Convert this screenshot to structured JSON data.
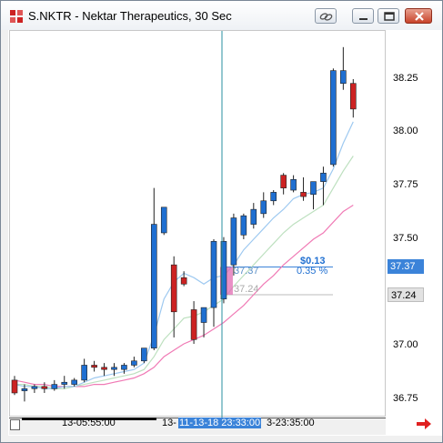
{
  "window": {
    "title": "S.NKTR - Nektar Therapeutics, 30 Sec"
  },
  "colors": {
    "up_candle": "#1f6fd1",
    "down_candle": "#cc2222",
    "crosshair": "#2a8fa0",
    "ma_fast": "#9ec9f0",
    "ma_mid": "#bde0bf",
    "ma_slow": "#f07ab5",
    "selection_fill": "#e26bb3",
    "price_tag_blue": "#3b83d9"
  },
  "y_axis": {
    "labels": [
      "38.25",
      "38.00",
      "37.75",
      "37.50",
      "37.00",
      "36.75"
    ]
  },
  "price_tags": {
    "current": "37.37",
    "reference": "37.24"
  },
  "crosshair": {
    "change_dollar": "$0.13",
    "change_percent": "0.35 %",
    "price_at_cursor": "37.37",
    "price_reference": "37.24"
  },
  "x_axis": {
    "labels": [
      "13-05:55:00",
      "13-",
      "11-13-18 23:33:00",
      "3-23:35:00"
    ]
  },
  "chart_data": {
    "type": "candlestick",
    "symbol": "S.NKTR",
    "interval": "30 Sec",
    "ylim": [
      36.67,
      38.52
    ],
    "candles": [
      {
        "o": 36.84,
        "h": 36.86,
        "l": 36.77,
        "c": 36.78
      },
      {
        "o": 36.79,
        "h": 36.82,
        "l": 36.74,
        "c": 36.8
      },
      {
        "o": 36.8,
        "h": 36.82,
        "l": 36.78,
        "c": 36.81
      },
      {
        "o": 36.81,
        "h": 36.83,
        "l": 36.78,
        "c": 36.8
      },
      {
        "o": 36.8,
        "h": 36.84,
        "l": 36.79,
        "c": 36.82
      },
      {
        "o": 36.82,
        "h": 36.86,
        "l": 36.8,
        "c": 36.83
      },
      {
        "o": 36.82,
        "h": 36.85,
        "l": 36.81,
        "c": 36.84
      },
      {
        "o": 36.84,
        "h": 36.94,
        "l": 36.83,
        "c": 36.91
      },
      {
        "o": 36.91,
        "h": 36.93,
        "l": 36.88,
        "c": 36.9
      },
      {
        "o": 36.9,
        "h": 36.92,
        "l": 36.86,
        "c": 36.89
      },
      {
        "o": 36.89,
        "h": 36.92,
        "l": 36.86,
        "c": 36.9
      },
      {
        "o": 36.89,
        "h": 36.92,
        "l": 36.87,
        "c": 36.91
      },
      {
        "o": 36.91,
        "h": 36.95,
        "l": 36.9,
        "c": 36.93
      },
      {
        "o": 36.93,
        "h": 36.99,
        "l": 36.92,
        "c": 36.99
      },
      {
        "o": 36.99,
        "h": 37.74,
        "l": 36.98,
        "c": 37.57
      },
      {
        "o": 37.53,
        "h": 37.65,
        "l": 37.52,
        "c": 37.65
      },
      {
        "o": 37.38,
        "h": 37.42,
        "l": 37.04,
        "c": 37.16
      },
      {
        "o": 37.32,
        "h": 37.35,
        "l": 37.28,
        "c": 37.29
      },
      {
        "o": 37.17,
        "h": 37.21,
        "l": 37.01,
        "c": 37.03
      },
      {
        "o": 37.11,
        "h": 37.18,
        "l": 37.04,
        "c": 37.18
      },
      {
        "o": 37.18,
        "h": 37.5,
        "l": 37.09,
        "c": 37.49
      },
      {
        "o": 37.22,
        "h": 37.51,
        "l": 37.2,
        "c": 37.49
      },
      {
        "o": 37.38,
        "h": 37.62,
        "l": 37.33,
        "c": 37.6
      },
      {
        "o": 37.52,
        "h": 37.62,
        "l": 37.5,
        "c": 37.61
      },
      {
        "o": 37.57,
        "h": 37.67,
        "l": 37.55,
        "c": 37.64
      },
      {
        "o": 37.62,
        "h": 37.72,
        "l": 37.6,
        "c": 37.68
      },
      {
        "o": 37.68,
        "h": 37.73,
        "l": 37.66,
        "c": 37.72
      },
      {
        "o": 37.8,
        "h": 37.81,
        "l": 37.71,
        "c": 37.74
      },
      {
        "o": 37.73,
        "h": 37.8,
        "l": 37.72,
        "c": 37.78
      },
      {
        "o": 37.72,
        "h": 37.79,
        "l": 37.68,
        "c": 37.7
      },
      {
        "o": 37.71,
        "h": 37.76,
        "l": 37.64,
        "c": 37.77
      },
      {
        "o": 37.77,
        "h": 37.84,
        "l": 37.66,
        "c": 37.81
      },
      {
        "o": 37.85,
        "h": 38.3,
        "l": 37.84,
        "c": 38.29
      },
      {
        "o": 38.23,
        "h": 38.4,
        "l": 38.2,
        "c": 38.29
      },
      {
        "o": 38.23,
        "h": 38.25,
        "l": 38.07,
        "c": 38.11
      }
    ],
    "ma_fast": [
      36.82,
      36.81,
      36.81,
      36.8,
      36.8,
      36.81,
      36.81,
      36.83,
      36.85,
      36.86,
      36.87,
      36.88,
      36.89,
      36.92,
      37.05,
      37.22,
      37.3,
      37.34,
      37.32,
      37.29,
      37.32,
      37.33,
      37.38,
      37.45,
      37.5,
      37.55,
      37.6,
      37.64,
      37.69,
      37.71,
      37.72,
      37.74,
      37.83,
      37.95,
      38.05
    ],
    "ma_mid": [
      36.82,
      36.82,
      36.81,
      36.81,
      36.8,
      36.8,
      36.81,
      36.82,
      36.83,
      36.84,
      36.85,
      36.86,
      36.87,
      36.89,
      36.95,
      37.03,
      37.08,
      37.13,
      37.14,
      37.16,
      37.19,
      37.22,
      37.28,
      37.33,
      37.38,
      37.43,
      37.48,
      37.53,
      37.57,
      37.6,
      37.63,
      37.66,
      37.74,
      37.82,
      37.89
    ],
    "ma_slow": [
      36.84,
      36.83,
      36.82,
      36.82,
      36.81,
      36.81,
      36.81,
      36.81,
      36.82,
      36.82,
      36.83,
      36.84,
      36.85,
      36.87,
      36.9,
      36.95,
      36.98,
      37.01,
      37.03,
      37.05,
      37.08,
      37.11,
      37.15,
      37.19,
      37.24,
      37.29,
      37.33,
      37.38,
      37.42,
      37.46,
      37.5,
      37.53,
      37.58,
      37.63,
      37.66
    ],
    "highlighted_candle_index": 21
  }
}
